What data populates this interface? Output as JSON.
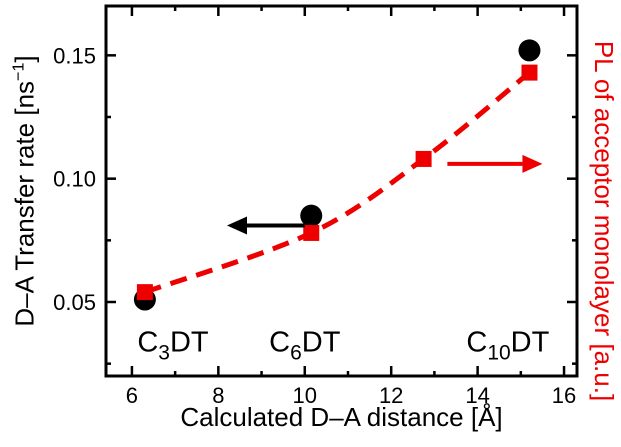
{
  "chart_data": {
    "type": "scatter",
    "title": "",
    "xlabel": "Calculated D–A distance [Å]",
    "ylabel_left": {
      "main": "D–A Transfer rate [ns",
      "sup": "−1",
      "end": "]"
    },
    "ylabel_right": "PL of acceptor monolayer [a.u.]",
    "xlim": [
      5.4,
      16.3
    ],
    "ylim": [
      0.02,
      0.17
    ],
    "xticks": [
      6,
      8,
      10,
      12,
      14,
      16
    ],
    "xminor": [
      7,
      9,
      11,
      13,
      15
    ],
    "yticks": [
      0.05,
      0.1,
      0.15
    ],
    "ytick_labels": [
      "0.05",
      "0.10",
      "0.15"
    ],
    "yminor": [
      0.025,
      0.075,
      0.125
    ],
    "colors": {
      "axis": "#000000",
      "donor": "#000000",
      "acceptor": "#ee0000"
    },
    "legend": "none",
    "grid": false,
    "series": [
      {
        "name": "D-A transfer rate (donor, black circles)",
        "marker": "circle",
        "color": "#000000",
        "size": 11,
        "points": [
          [
            6.3,
            0.051
          ],
          [
            10.15,
            0.085
          ],
          [
            15.2,
            0.152
          ]
        ]
      },
      {
        "name": "PL of acceptor monolayer (red squares, dashed guide line)",
        "marker": "square",
        "color": "#ee0000",
        "size": 8,
        "line": "dashed",
        "points": [
          [
            6.3,
            0.054
          ],
          [
            10.15,
            0.078
          ],
          [
            12.75,
            0.108
          ],
          [
            15.2,
            0.143
          ]
        ]
      }
    ],
    "annotations": [
      {
        "pre": "C",
        "sub": "3",
        "post": "DT",
        "x": 6.95,
        "y": 0.034,
        "color": "#000000"
      },
      {
        "pre": "C",
        "sub": "6",
        "post": "DT",
        "x": 10.0,
        "y": 0.034,
        "color": "#000000"
      },
      {
        "pre": "C",
        "sub": "10",
        "post": "DT",
        "x": 14.7,
        "y": 0.034,
        "color": "#000000"
      }
    ],
    "arrows": [
      {
        "from_x": 10.0,
        "to_x": 8.2,
        "y": 0.081,
        "color": "#000000"
      },
      {
        "from_x": 13.3,
        "to_x": 15.5,
        "y": 0.106,
        "color": "#ee0000"
      }
    ]
  }
}
